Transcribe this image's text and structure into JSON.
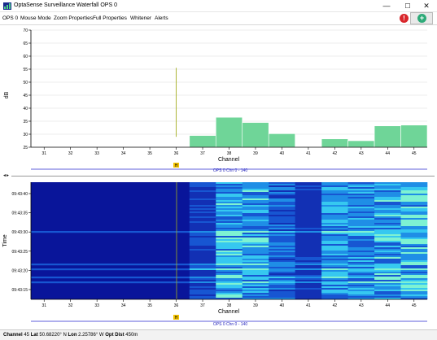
{
  "window": {
    "title": "OptaSense Surveillance Waterfall OPS 0",
    "minimize": "—",
    "maximize": "☐",
    "close": "✕"
  },
  "menu": {
    "items": [
      "OPS 0",
      "Mouse Mode",
      "Zoom Properties",
      "Full Properties",
      "Whitener",
      "Alerts"
    ],
    "alert_icon": "!",
    "add_icon": "+"
  },
  "colors": {
    "bar": "#6fd598",
    "bar_edge": "#ffffff",
    "cursor_line": "#a3ad1f",
    "waterfall_bg": "#09159a",
    "range_line": "#2a2acf",
    "range_text": "#2222bb",
    "marker_fill": "#f2c200"
  },
  "spectrum": {
    "ylabel": "dB",
    "xlabel": "Channel",
    "marker": "H",
    "range_label": "OPS 0 Chn 0 - 140"
  },
  "waterfall": {
    "ylabel": "Time",
    "xlabel": "Channel",
    "marker": "H",
    "range_label": "OPS 0 Chn 0 - 140",
    "time_ticks": [
      "09:43:40",
      "09:43:35",
      "09:43:30",
      "09:43:25",
      "09:43:20",
      "09:43:15"
    ]
  },
  "chart_data": {
    "type": "bar",
    "xlabel": "Channel",
    "ylabel": "dB",
    "ylim": [
      25,
      70
    ],
    "yticks": [
      25,
      30,
      35,
      40,
      45,
      50,
      55,
      60,
      65,
      70
    ],
    "categories": [
      31,
      32,
      33,
      34,
      35,
      36,
      37,
      38,
      39,
      40,
      41,
      42,
      43,
      44,
      45
    ],
    "values": [
      25,
      25,
      25,
      25,
      25,
      25,
      29.5,
      36.5,
      34.5,
      30.2,
      25,
      28.2,
      27.5,
      33.2,
      33.5
    ],
    "cursor_channel": 36,
    "cursor_value": 55.5
  },
  "status": {
    "channel_label": "Channel",
    "channel_value": "45",
    "lat_label": "Lat",
    "lat_value": "50.68220° N",
    "lon_label": "Lon",
    "lon_value": "2.25786° W",
    "dist_label": "Opt Dist",
    "dist_value": "450m"
  }
}
